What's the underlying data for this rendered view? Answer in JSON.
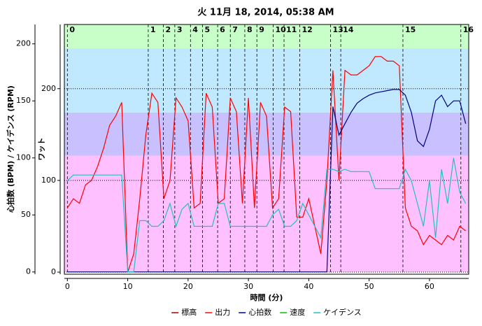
{
  "chart_data": {
    "type": "line",
    "title": "火 11月 18, 2014, 05:38 AM",
    "xlabel": "時間 (分)",
    "ylabel": "心拍数 (BPM) / ケイデンス (RPM)",
    "y2label": "ワット",
    "xlim": [
      -0.5,
      66.5
    ],
    "xticks": [
      0,
      10,
      20,
      30,
      40,
      50,
      60
    ],
    "ylim": [
      -2,
      217
    ],
    "yticks": [
      0,
      50,
      100,
      150,
      200
    ],
    "y2lim": [
      -2.3,
      270
    ],
    "y2ticks": [
      0,
      100,
      200
    ],
    "grid": true,
    "legend": "bottom",
    "zones": [
      {
        "from": 0,
        "to": 127,
        "color": "#ffc0ff"
      },
      {
        "from": 127,
        "to": 174,
        "color": "#c8c0ff"
      },
      {
        "from": 174,
        "to": 244,
        "color": "#c0e8ff"
      },
      {
        "from": 244,
        "to": 270,
        "color": "#c8ffc8"
      }
    ],
    "laps": [
      {
        "value": 0,
        "label": "0"
      },
      {
        "value": 13.4,
        "label": "1"
      },
      {
        "value": 15.9,
        "label": "2"
      },
      {
        "value": 17.8,
        "label": "3"
      },
      {
        "value": 20.4,
        "label": "4"
      },
      {
        "value": 22.4,
        "label": "5"
      },
      {
        "value": 24.9,
        "label": "6"
      },
      {
        "value": 27.0,
        "label": "7"
      },
      {
        "value": 29.4,
        "label": "8"
      },
      {
        "value": 31.4,
        "label": "9"
      },
      {
        "value": 34.1,
        "label": "10"
      },
      {
        "value": 35.9,
        "label": "11"
      },
      {
        "value": 38.5,
        "label": "12"
      },
      {
        "value": 43.6,
        "label": "13"
      },
      {
        "value": 45.3,
        "label": "14"
      },
      {
        "value": 55.6,
        "label": "15"
      },
      {
        "value": 65.2,
        "label": "16"
      }
    ],
    "x": [
      0,
      1,
      2,
      3,
      4,
      5,
      6,
      7,
      8,
      9,
      10,
      11,
      12,
      13,
      14,
      15,
      16,
      17,
      18,
      19,
      20,
      21,
      22,
      23,
      24,
      25,
      26,
      27,
      28,
      29,
      30,
      31,
      32,
      33,
      34,
      35,
      36,
      37,
      38,
      39,
      40,
      41,
      42,
      43,
      44,
      45,
      46,
      47,
      48,
      49,
      50,
      51,
      52,
      53,
      54,
      55,
      56,
      57,
      58,
      59,
      60,
      61,
      62,
      63,
      64,
      65,
      66
    ],
    "series": [
      {
        "name": "標高",
        "color": "#a00000",
        "values": [
          null,
          null,
          null,
          null,
          null,
          null,
          null,
          null,
          null,
          null,
          null,
          null,
          null,
          null,
          null,
          null,
          null,
          null,
          null,
          null,
          null,
          null,
          null,
          null,
          null,
          null,
          null,
          null,
          null,
          null,
          null,
          null,
          null,
          null,
          null,
          null,
          null,
          null,
          null,
          null,
          null,
          null,
          null,
          null,
          null,
          null,
          null,
          null,
          null,
          null,
          null,
          null,
          null,
          null,
          null,
          null,
          null,
          null,
          null,
          null,
          null,
          null,
          null,
          null,
          null,
          null,
          null
        ]
      },
      {
        "name": "出力",
        "color": "#ff0000",
        "axis": "y2",
        "values": [
          70,
          80,
          75,
          95,
          100,
          115,
          135,
          160,
          170,
          185,
          0,
          20,
          80,
          150,
          195,
          185,
          80,
          100,
          190,
          180,
          165,
          70,
          75,
          195,
          180,
          75,
          80,
          190,
          175,
          75,
          190,
          70,
          185,
          170,
          70,
          80,
          180,
          175,
          60,
          60,
          80,
          50,
          20,
          100,
          220,
          100,
          220,
          215,
          215,
          220,
          225,
          235,
          235,
          230,
          230,
          225,
          70,
          50,
          45,
          30,
          40,
          35,
          30,
          40,
          35,
          50,
          45
        ]
      },
      {
        "name": "心拍数",
        "color": "#000080",
        "values": [
          0,
          0,
          0,
          0,
          0,
          0,
          0,
          0,
          0,
          0,
          0,
          0,
          0,
          0,
          0,
          0,
          0,
          0,
          0,
          0,
          0,
          0,
          0,
          0,
          0,
          0,
          0,
          0,
          0,
          0,
          0,
          0,
          0,
          0,
          0,
          0,
          0,
          0,
          0,
          0,
          0,
          0,
          0,
          0,
          145,
          120,
          130,
          140,
          148,
          152,
          155,
          157,
          158,
          159,
          160,
          160,
          155,
          140,
          115,
          110,
          125,
          150,
          155,
          145,
          150,
          150,
          130
        ]
      },
      {
        "name": "速度",
        "color": "#00c000",
        "values": [
          null,
          null,
          null,
          null,
          null,
          null,
          null,
          null,
          null,
          null,
          null,
          null,
          null,
          null,
          null,
          null,
          null,
          null,
          null,
          null,
          null,
          null,
          null,
          null,
          null,
          null,
          null,
          null,
          null,
          null,
          null,
          null,
          null,
          null,
          null,
          null,
          null,
          null,
          null,
          null,
          null,
          null,
          null,
          null,
          null,
          null,
          null,
          null,
          null,
          null,
          null,
          null,
          null,
          null,
          null,
          null,
          null,
          null,
          null,
          null,
          null,
          null,
          null,
          null,
          null,
          null,
          null
        ]
      },
      {
        "name": "ケイデンス",
        "color": "#20c0c0",
        "values": [
          80,
          85,
          85,
          85,
          85,
          85,
          85,
          85,
          85,
          85,
          0,
          0,
          45,
          45,
          40,
          40,
          45,
          60,
          40,
          55,
          60,
          40,
          40,
          40,
          40,
          60,
          60,
          40,
          40,
          40,
          40,
          40,
          40,
          40,
          50,
          55,
          40,
          40,
          45,
          60,
          50,
          40,
          30,
          90,
          90,
          88,
          90,
          88,
          88,
          88,
          88,
          73,
          73,
          73,
          73,
          73,
          90,
          80,
          60,
          40,
          80,
          30,
          90,
          60,
          100,
          70,
          60
        ]
      }
    ]
  }
}
